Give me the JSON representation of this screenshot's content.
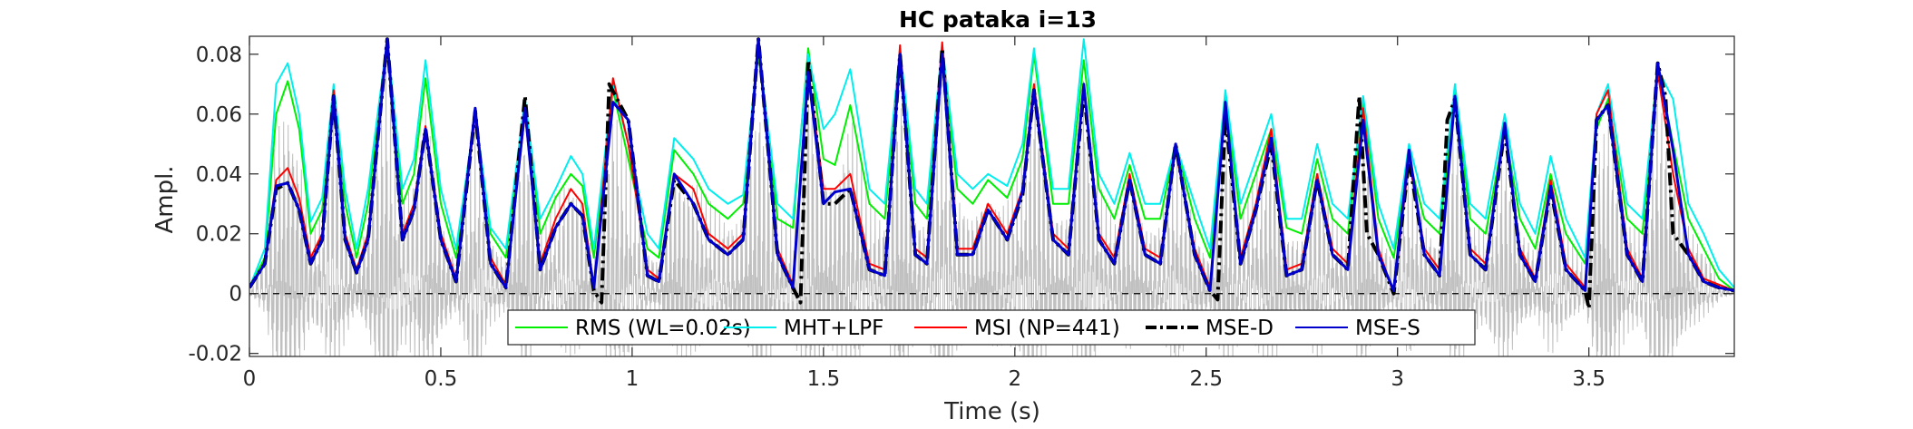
{
  "chart_data": {
    "type": "line",
    "title": "HC pataka i=13",
    "xlabel": "Time (s)",
    "ylabel": "Ampl.",
    "xlim": [
      0,
      3.88
    ],
    "ylim": [
      -0.021,
      0.086
    ],
    "xticks": [
      0,
      0.5,
      1,
      1.5,
      2,
      2.5,
      3,
      3.5
    ],
    "xtick_labels": [
      "0",
      "0.5",
      "1",
      "1.5",
      "2",
      "2.5",
      "3",
      "3.5"
    ],
    "yticks": [
      -0.02,
      0,
      0.02,
      0.04,
      0.06,
      0.08
    ],
    "ytick_labels": [
      "-0.02",
      "0",
      "0.02",
      "0.04",
      "0.06",
      "0.08"
    ],
    "grid": false,
    "zero_line": {
      "y": 0,
      "style": "dashed",
      "color": "#000000"
    },
    "legend_position": "bottom-center",
    "colors": {
      "waveform": "#c0c0c0",
      "RMS": "#00ee00",
      "MHT": "#00eeee",
      "MSI": "#ff0000",
      "MSE_D": "#000000",
      "MSE_S": "#0000cc"
    },
    "waveform": {
      "description_free_series": true,
      "bursts_x": [
        0.08,
        0.22,
        0.36,
        0.46,
        0.59,
        0.72,
        0.95,
        1.1,
        1.2,
        1.33,
        1.45,
        1.57,
        1.7,
        1.81,
        1.93,
        2.05,
        2.18,
        2.3,
        2.42,
        2.55,
        2.67,
        2.79,
        2.9,
        3.03,
        3.15,
        3.28,
        3.4,
        3.55,
        3.68
      ],
      "neg_extent": [
        -0.021,
        -0.021,
        -0.021,
        -0.021,
        -0.021,
        -0.02,
        -0.021,
        -0.02,
        -0.02,
        -0.021,
        -0.021,
        -0.02,
        -0.02,
        -0.021,
        -0.019,
        -0.021,
        -0.021,
        -0.02,
        -0.018,
        -0.021,
        -0.019,
        -0.02,
        -0.021,
        -0.02,
        -0.021,
        -0.021,
        -0.019,
        -0.021,
        -0.021
      ]
    },
    "series": [
      {
        "name": "RMS (WL=0.02s)",
        "style": "solid",
        "x": [
          0.0,
          0.04,
          0.07,
          0.1,
          0.13,
          0.16,
          0.19,
          0.22,
          0.25,
          0.28,
          0.31,
          0.36,
          0.4,
          0.43,
          0.46,
          0.5,
          0.54,
          0.59,
          0.63,
          0.67,
          0.72,
          0.76,
          0.8,
          0.84,
          0.87,
          0.9,
          0.95,
          0.99,
          1.04,
          1.07,
          1.11,
          1.16,
          1.2,
          1.25,
          1.29,
          1.33,
          1.38,
          1.42,
          1.46,
          1.5,
          1.53,
          1.57,
          1.62,
          1.66,
          1.7,
          1.74,
          1.77,
          1.81,
          1.85,
          1.89,
          1.93,
          1.98,
          2.02,
          2.05,
          2.1,
          2.14,
          2.18,
          2.22,
          2.26,
          2.3,
          2.34,
          2.38,
          2.42,
          2.47,
          2.51,
          2.55,
          2.59,
          2.63,
          2.67,
          2.71,
          2.75,
          2.79,
          2.83,
          2.87,
          2.91,
          2.95,
          2.99,
          3.03,
          3.07,
          3.11,
          3.15,
          3.19,
          3.23,
          3.28,
          3.32,
          3.36,
          3.4,
          3.44,
          3.49,
          3.52,
          3.55,
          3.6,
          3.64,
          3.68,
          3.72,
          3.76,
          3.8,
          3.84,
          3.88
        ],
        "y": [
          0.002,
          0.012,
          0.06,
          0.071,
          0.055,
          0.02,
          0.028,
          0.065,
          0.03,
          0.012,
          0.03,
          0.085,
          0.03,
          0.04,
          0.072,
          0.03,
          0.012,
          0.06,
          0.02,
          0.012,
          0.065,
          0.02,
          0.032,
          0.04,
          0.036,
          0.012,
          0.068,
          0.045,
          0.015,
          0.012,
          0.048,
          0.04,
          0.03,
          0.025,
          0.03,
          0.08,
          0.025,
          0.022,
          0.082,
          0.045,
          0.043,
          0.063,
          0.03,
          0.025,
          0.08,
          0.03,
          0.025,
          0.08,
          0.035,
          0.03,
          0.038,
          0.032,
          0.045,
          0.08,
          0.03,
          0.03,
          0.078,
          0.035,
          0.025,
          0.043,
          0.025,
          0.025,
          0.05,
          0.025,
          0.012,
          0.065,
          0.025,
          0.04,
          0.055,
          0.022,
          0.02,
          0.045,
          0.025,
          0.02,
          0.065,
          0.025,
          0.012,
          0.045,
          0.025,
          0.02,
          0.067,
          0.025,
          0.02,
          0.055,
          0.025,
          0.015,
          0.04,
          0.02,
          0.01,
          0.055,
          0.065,
          0.025,
          0.02,
          0.077,
          0.05,
          0.025,
          0.015,
          0.005,
          0.001
        ]
      },
      {
        "name": "MHT+LPF",
        "style": "solid",
        "x": [
          0.0,
          0.04,
          0.07,
          0.1,
          0.13,
          0.16,
          0.19,
          0.22,
          0.25,
          0.28,
          0.31,
          0.36,
          0.4,
          0.43,
          0.46,
          0.5,
          0.54,
          0.59,
          0.63,
          0.67,
          0.72,
          0.76,
          0.8,
          0.84,
          0.87,
          0.9,
          0.95,
          0.99,
          1.04,
          1.07,
          1.11,
          1.16,
          1.2,
          1.25,
          1.29,
          1.33,
          1.38,
          1.42,
          1.46,
          1.5,
          1.53,
          1.57,
          1.62,
          1.66,
          1.7,
          1.74,
          1.77,
          1.81,
          1.85,
          1.89,
          1.93,
          1.98,
          2.02,
          2.05,
          2.1,
          2.14,
          2.18,
          2.22,
          2.26,
          2.3,
          2.34,
          2.38,
          2.42,
          2.47,
          2.51,
          2.55,
          2.59,
          2.63,
          2.67,
          2.71,
          2.75,
          2.79,
          2.83,
          2.87,
          2.91,
          2.95,
          2.99,
          3.03,
          3.07,
          3.11,
          3.15,
          3.19,
          3.23,
          3.28,
          3.32,
          3.36,
          3.4,
          3.44,
          3.49,
          3.52,
          3.55,
          3.6,
          3.64,
          3.68,
          3.72,
          3.76,
          3.8,
          3.84,
          3.88
        ],
        "y": [
          0.002,
          0.015,
          0.07,
          0.077,
          0.06,
          0.024,
          0.032,
          0.07,
          0.035,
          0.015,
          0.035,
          0.085,
          0.035,
          0.045,
          0.078,
          0.035,
          0.015,
          0.06,
          0.022,
          0.015,
          0.065,
          0.025,
          0.035,
          0.046,
          0.04,
          0.015,
          0.07,
          0.05,
          0.02,
          0.015,
          0.052,
          0.045,
          0.035,
          0.03,
          0.033,
          0.082,
          0.03,
          0.025,
          0.08,
          0.055,
          0.06,
          0.075,
          0.035,
          0.03,
          0.082,
          0.035,
          0.03,
          0.083,
          0.04,
          0.035,
          0.04,
          0.036,
          0.05,
          0.082,
          0.035,
          0.035,
          0.085,
          0.04,
          0.03,
          0.047,
          0.03,
          0.03,
          0.05,
          0.03,
          0.015,
          0.068,
          0.03,
          0.045,
          0.06,
          0.025,
          0.025,
          0.05,
          0.03,
          0.025,
          0.066,
          0.03,
          0.015,
          0.05,
          0.03,
          0.025,
          0.07,
          0.03,
          0.025,
          0.06,
          0.03,
          0.02,
          0.046,
          0.025,
          0.012,
          0.06,
          0.07,
          0.03,
          0.025,
          0.075,
          0.065,
          0.03,
          0.02,
          0.008,
          0.002
        ]
      },
      {
        "name": "MSI (NP=441)",
        "style": "solid",
        "x": [
          0.0,
          0.04,
          0.07,
          0.1,
          0.13,
          0.16,
          0.19,
          0.22,
          0.25,
          0.28,
          0.31,
          0.36,
          0.4,
          0.43,
          0.46,
          0.5,
          0.54,
          0.59,
          0.63,
          0.67,
          0.72,
          0.76,
          0.8,
          0.84,
          0.87,
          0.9,
          0.95,
          0.99,
          1.04,
          1.07,
          1.11,
          1.16,
          1.2,
          1.25,
          1.29,
          1.33,
          1.38,
          1.42,
          1.46,
          1.5,
          1.53,
          1.57,
          1.62,
          1.66,
          1.7,
          1.74,
          1.77,
          1.81,
          1.85,
          1.89,
          1.93,
          1.98,
          2.02,
          2.05,
          2.1,
          2.14,
          2.18,
          2.22,
          2.26,
          2.3,
          2.34,
          2.38,
          2.42,
          2.47,
          2.51,
          2.55,
          2.59,
          2.63,
          2.67,
          2.71,
          2.75,
          2.79,
          2.83,
          2.87,
          2.91,
          2.95,
          2.99,
          3.03,
          3.07,
          3.11,
          3.15,
          3.19,
          3.23,
          3.28,
          3.32,
          3.36,
          3.4,
          3.44,
          3.49,
          3.52,
          3.55,
          3.6,
          3.64,
          3.68,
          3.72,
          3.76,
          3.8,
          3.84,
          3.88
        ],
        "y": [
          0.002,
          0.01,
          0.038,
          0.042,
          0.032,
          0.012,
          0.02,
          0.068,
          0.02,
          0.008,
          0.02,
          0.085,
          0.02,
          0.03,
          0.056,
          0.02,
          0.005,
          0.06,
          0.012,
          0.003,
          0.06,
          0.01,
          0.025,
          0.035,
          0.03,
          0.002,
          0.072,
          0.05,
          0.008,
          0.005,
          0.04,
          0.035,
          0.02,
          0.015,
          0.02,
          0.083,
          0.015,
          0.003,
          0.075,
          0.035,
          0.035,
          0.04,
          0.01,
          0.008,
          0.083,
          0.015,
          0.012,
          0.084,
          0.015,
          0.015,
          0.03,
          0.02,
          0.035,
          0.07,
          0.02,
          0.015,
          0.07,
          0.02,
          0.012,
          0.04,
          0.015,
          0.012,
          0.048,
          0.015,
          0.002,
          0.062,
          0.012,
          0.03,
          0.055,
          0.008,
          0.01,
          0.04,
          0.015,
          0.01,
          0.062,
          0.015,
          0.0,
          0.045,
          0.015,
          0.008,
          0.065,
          0.015,
          0.01,
          0.055,
          0.015,
          0.005,
          0.038,
          0.01,
          0.002,
          0.06,
          0.068,
          0.015,
          0.005,
          0.074,
          0.04,
          0.015,
          0.005,
          0.003,
          0.001
        ]
      },
      {
        "name": "MSE-D",
        "style": "dash-dot",
        "x": [
          0.0,
          0.04,
          0.07,
          0.1,
          0.13,
          0.16,
          0.19,
          0.22,
          0.25,
          0.28,
          0.31,
          0.36,
          0.4,
          0.43,
          0.46,
          0.5,
          0.54,
          0.59,
          0.63,
          0.67,
          0.72,
          0.76,
          0.8,
          0.84,
          0.87,
          0.9,
          0.92,
          0.94,
          0.99,
          1.04,
          1.07,
          1.11,
          1.16,
          1.2,
          1.25,
          1.29,
          1.33,
          1.38,
          1.42,
          1.44,
          1.46,
          1.5,
          1.53,
          1.57,
          1.62,
          1.66,
          1.7,
          1.74,
          1.77,
          1.81,
          1.85,
          1.89,
          1.93,
          1.98,
          2.02,
          2.05,
          2.1,
          2.14,
          2.18,
          2.22,
          2.26,
          2.3,
          2.34,
          2.38,
          2.42,
          2.47,
          2.51,
          2.53,
          2.55,
          2.59,
          2.63,
          2.67,
          2.71,
          2.75,
          2.79,
          2.83,
          2.87,
          2.9,
          2.92,
          2.95,
          2.99,
          3.03,
          3.07,
          3.11,
          3.13,
          3.15,
          3.19,
          3.23,
          3.28,
          3.32,
          3.36,
          3.4,
          3.44,
          3.49,
          3.5,
          3.52,
          3.55,
          3.6,
          3.64,
          3.68,
          3.7,
          3.72,
          3.76,
          3.8,
          3.84,
          3.88
        ],
        "y": [
          0.002,
          0.01,
          0.035,
          0.037,
          0.028,
          0.01,
          0.018,
          0.066,
          0.018,
          0.007,
          0.018,
          0.085,
          0.018,
          0.028,
          0.055,
          0.018,
          0.004,
          0.061,
          0.01,
          0.002,
          0.066,
          0.008,
          0.022,
          0.03,
          0.026,
          0.001,
          -0.003,
          0.07,
          0.058,
          0.006,
          0.004,
          0.038,
          0.03,
          0.018,
          0.013,
          0.018,
          0.085,
          0.013,
          0.002,
          -0.003,
          0.078,
          0.03,
          0.03,
          0.035,
          0.008,
          0.006,
          0.08,
          0.013,
          0.01,
          0.082,
          0.013,
          0.013,
          0.028,
          0.018,
          0.033,
          0.068,
          0.018,
          0.013,
          0.068,
          0.018,
          0.01,
          0.038,
          0.013,
          0.01,
          0.05,
          0.013,
          0.001,
          -0.002,
          0.06,
          0.01,
          0.028,
          0.05,
          0.006,
          0.008,
          0.038,
          0.013,
          0.008,
          0.066,
          0.02,
          0.013,
          0.0,
          0.045,
          0.013,
          0.006,
          0.058,
          0.065,
          0.013,
          0.008,
          0.055,
          0.013,
          0.004,
          0.035,
          0.008,
          0.001,
          -0.005,
          0.058,
          0.063,
          0.013,
          0.004,
          0.077,
          0.066,
          0.02,
          0.013,
          0.004,
          0.002,
          0.001
        ]
      },
      {
        "name": "MSE-S",
        "style": "solid",
        "x": [
          0.0,
          0.04,
          0.07,
          0.1,
          0.13,
          0.16,
          0.19,
          0.22,
          0.25,
          0.28,
          0.31,
          0.36,
          0.4,
          0.43,
          0.46,
          0.5,
          0.54,
          0.59,
          0.63,
          0.67,
          0.72,
          0.76,
          0.8,
          0.84,
          0.87,
          0.9,
          0.95,
          0.99,
          1.04,
          1.07,
          1.11,
          1.16,
          1.2,
          1.25,
          1.29,
          1.33,
          1.38,
          1.42,
          1.46,
          1.5,
          1.53,
          1.57,
          1.62,
          1.66,
          1.7,
          1.74,
          1.77,
          1.81,
          1.85,
          1.89,
          1.93,
          1.98,
          2.02,
          2.05,
          2.1,
          2.14,
          2.18,
          2.22,
          2.26,
          2.3,
          2.34,
          2.38,
          2.42,
          2.47,
          2.51,
          2.55,
          2.59,
          2.63,
          2.67,
          2.71,
          2.75,
          2.79,
          2.83,
          2.87,
          2.91,
          2.95,
          2.99,
          3.03,
          3.07,
          3.11,
          3.15,
          3.19,
          3.23,
          3.28,
          3.32,
          3.36,
          3.4,
          3.44,
          3.49,
          3.52,
          3.55,
          3.6,
          3.64,
          3.68,
          3.72,
          3.76,
          3.8,
          3.84,
          3.88
        ],
        "y": [
          0.002,
          0.01,
          0.036,
          0.037,
          0.028,
          0.01,
          0.018,
          0.066,
          0.018,
          0.007,
          0.018,
          0.085,
          0.018,
          0.028,
          0.055,
          0.018,
          0.004,
          0.062,
          0.01,
          0.002,
          0.062,
          0.008,
          0.022,
          0.03,
          0.026,
          0.002,
          0.064,
          0.058,
          0.006,
          0.004,
          0.04,
          0.03,
          0.018,
          0.013,
          0.018,
          0.085,
          0.013,
          0.002,
          0.074,
          0.03,
          0.034,
          0.035,
          0.008,
          0.006,
          0.08,
          0.013,
          0.01,
          0.08,
          0.013,
          0.013,
          0.028,
          0.018,
          0.034,
          0.068,
          0.018,
          0.013,
          0.07,
          0.018,
          0.01,
          0.038,
          0.013,
          0.01,
          0.05,
          0.013,
          0.001,
          0.064,
          0.01,
          0.028,
          0.052,
          0.006,
          0.008,
          0.038,
          0.013,
          0.008,
          0.058,
          0.013,
          0.001,
          0.048,
          0.013,
          0.006,
          0.066,
          0.013,
          0.008,
          0.057,
          0.013,
          0.004,
          0.036,
          0.008,
          0.001,
          0.058,
          0.063,
          0.013,
          0.004,
          0.077,
          0.048,
          0.013,
          0.004,
          0.002,
          0.001
        ]
      }
    ]
  }
}
